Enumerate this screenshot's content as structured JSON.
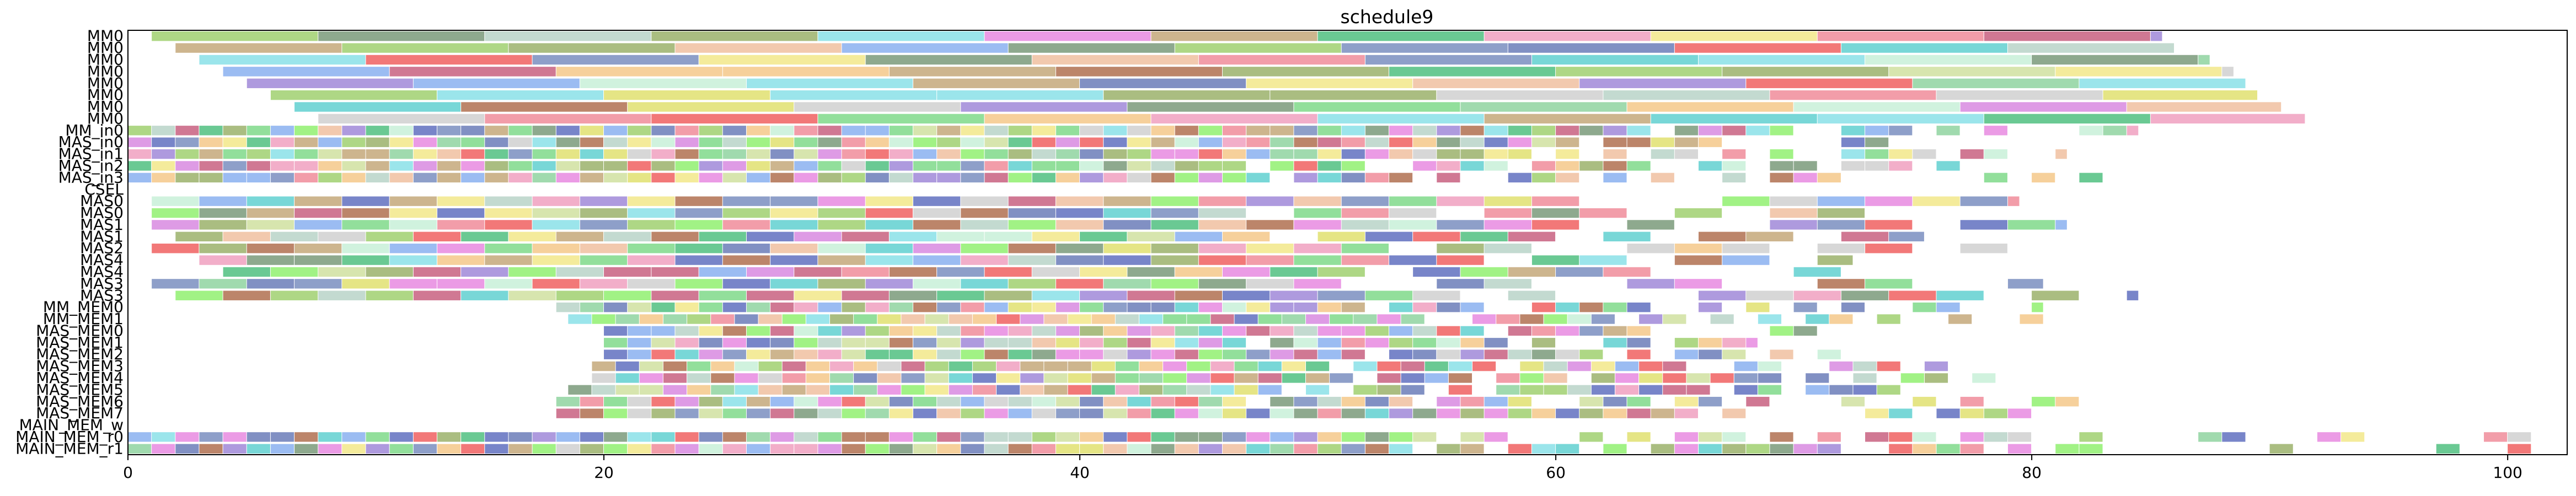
{
  "chart_data": {
    "type": "gantt",
    "title": "schedule9",
    "xlabel": "",
    "ylabel": "",
    "xlim": [
      0,
      102.5
    ],
    "xticks": [
      "0",
      "20",
      "40",
      "60",
      "80",
      "100"
    ],
    "rows": [
      "MM0",
      "MM0",
      "MM0",
      "MM0",
      "MM0",
      "MM0",
      "MM0",
      "MM0",
      "MM_in0",
      "MAS_in0",
      "MAS_in1",
      "MAS_in2",
      "MAS_in3",
      "CSEL",
      "MAS0",
      "MAS0",
      "MAS1",
      "MAS1",
      "MAS2",
      "MAS4",
      "MAS4",
      "MAS3",
      "MAS3",
      "MM_MEM0",
      "MM_MEM1",
      "MAS_MEM0",
      "MAS_MEM1",
      "MAS_MEM2",
      "MAS_MEM3",
      "MAS_MEM4",
      "MAS_MEM5",
      "MAS_MEM6",
      "MAS_MEM7",
      "MAIN_MEM_w",
      "MAIN_MEM_r0",
      "MAIN_MEM_r1"
    ],
    "row_spans": [
      {
        "row": 0,
        "start": 1.0,
        "end": 85.5,
        "segment": 7.0
      },
      {
        "row": 1,
        "start": 2.0,
        "end": 86.0,
        "segment": 7.0
      },
      {
        "row": 2,
        "start": 3.0,
        "end": 87.5,
        "segment": 7.0
      },
      {
        "row": 3,
        "start": 4.0,
        "end": 88.5,
        "segment": 7.0
      },
      {
        "row": 4,
        "start": 5.0,
        "end": 89.0,
        "segment": 7.0
      },
      {
        "row": 5,
        "start": 6.0,
        "end": 89.5,
        "segment": 7.0
      },
      {
        "row": 6,
        "start": 7.0,
        "end": 90.5,
        "segment": 7.0
      },
      {
        "row": 7,
        "start": 8.0,
        "end": 91.5,
        "segment": 7.0
      },
      {
        "row": 8,
        "start": 0.0,
        "end": 84.5,
        "segment": 1.0
      },
      {
        "row": 9,
        "start": 0.0,
        "end": 83.0,
        "segment": 1.0
      },
      {
        "row": 10,
        "start": 0.0,
        "end": 81.5,
        "segment": 1.0
      },
      {
        "row": 11,
        "start": 0.0,
        "end": 80.5,
        "segment": 1.0
      },
      {
        "row": 12,
        "start": 0.0,
        "end": 83.0,
        "segment": 1.0
      },
      {
        "row": 14,
        "start": 1.0,
        "end": 79.5,
        "segment": 2.0
      },
      {
        "row": 15,
        "start": 1.0,
        "end": 73.5,
        "segment": 2.0
      },
      {
        "row": 16,
        "start": 1.0,
        "end": 81.5,
        "segment": 2.0
      },
      {
        "row": 17,
        "start": 2.0,
        "end": 75.5,
        "segment": 2.0
      },
      {
        "row": 18,
        "start": 1.0,
        "end": 82.5,
        "segment": 2.0
      },
      {
        "row": 19,
        "start": 3.0,
        "end": 72.5,
        "segment": 2.0
      },
      {
        "row": 20,
        "start": 4.0,
        "end": 78.5,
        "segment": 2.0
      },
      {
        "row": 21,
        "start": 1.0,
        "end": 80.5,
        "segment": 2.0
      },
      {
        "row": 22,
        "start": 2.0,
        "end": 84.5,
        "segment": 2.0
      },
      {
        "row": 23,
        "start": 18.0,
        "end": 80.5,
        "segment": 1.0
      },
      {
        "row": 24,
        "start": 18.5,
        "end": 82.5,
        "segment": 1.0
      },
      {
        "row": 25,
        "start": 20.0,
        "end": 71.0,
        "segment": 1.0
      },
      {
        "row": 26,
        "start": 20.0,
        "end": 68.5,
        "segment": 1.0
      },
      {
        "row": 27,
        "start": 20.0,
        "end": 72.0,
        "segment": 1.0
      },
      {
        "row": 28,
        "start": 19.5,
        "end": 76.5,
        "segment": 1.0
      },
      {
        "row": 29,
        "start": 19.5,
        "end": 79.0,
        "segment": 1.0
      },
      {
        "row": 30,
        "start": 18.5,
        "end": 77.5,
        "segment": 1.0
      },
      {
        "row": 31,
        "start": 18.0,
        "end": 84.0,
        "segment": 1.0
      },
      {
        "row": 32,
        "start": 18.0,
        "end": 84.0,
        "segment": 1.0
      },
      {
        "row": 34,
        "start": 0.0,
        "end": 102.0,
        "segment": 1.0
      },
      {
        "row": 35,
        "start": 0.0,
        "end": 102.0,
        "segment": 1.0
      }
    ],
    "palette": [
      "#7fd98a",
      "#6b7cb8",
      "#c4a87a",
      "#b8d4c8",
      "#8ab0f0",
      "#7a8ec0",
      "#c8f0d8",
      "#9bb26b",
      "#f08c9a",
      "#8fd4a0",
      "#f4c88a",
      "#d88ae0",
      "#f2e88a",
      "#8ae0e8",
      "#a0d070",
      "#e88ae0",
      "#7a9a7a",
      "#f0a0c0",
      "#d0e0a0",
      "#a088d8",
      "#f0c0a0",
      "#90f070",
      "#d0d0d0",
      "#c86080",
      "#6070c0",
      "#e0e070",
      "#50c080",
      "#b07050",
      "#f06060",
      "#60d0d0"
    ],
    "grid": false,
    "legend": "none"
  }
}
